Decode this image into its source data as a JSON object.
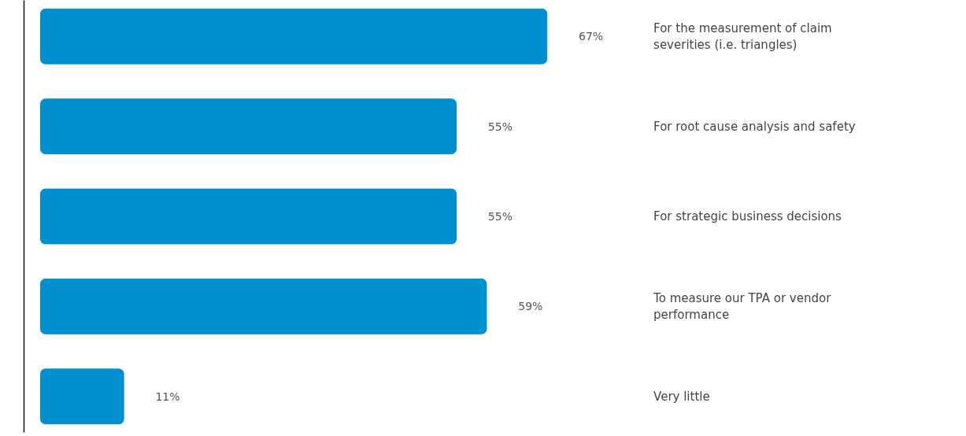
{
  "chart_data": {
    "type": "bar",
    "orientation": "horizontal",
    "categories": [
      "For the measurement of claim severities (i.e. triangles)",
      "For root cause analysis and safety",
      "For strategic business decisions",
      "To measure our TPA or vendor performance",
      "Very little"
    ],
    "values": [
      67,
      55,
      55,
      59,
      11
    ],
    "color": "#008fcf",
    "data_labels": true,
    "value_labels": [
      "67%",
      "55%",
      "55%",
      "59%",
      "11%"
    ],
    "grid": false
  }
}
